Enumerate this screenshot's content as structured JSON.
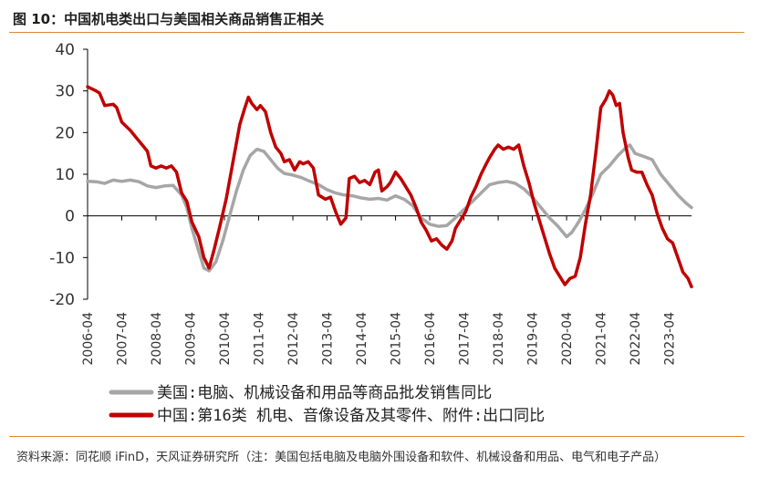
{
  "title": "图 10：中国机电类出口与美国相关商品销售正相关",
  "source": "资料来源：同花顺 iFinD，天风证券研究所（注：美国包括电脑及电脑外围设备和软件、机械设备和用品、电气和电子产品）",
  "colors": {
    "us": "#a6a6a6",
    "china": "#c00000",
    "rule": "#d98b3a"
  },
  "chart_data": {
    "type": "line",
    "x_label_format": "YYYY-04",
    "x_range": [
      2006.25,
      2023.9
    ],
    "ylim": [
      -20,
      40
    ],
    "yticks": [
      -20,
      -10,
      0,
      10,
      20,
      30,
      40
    ],
    "xticks": [
      "2006-04",
      "2007-04",
      "2008-04",
      "2009-04",
      "2010-04",
      "2011-04",
      "2012-04",
      "2013-04",
      "2014-04",
      "2015-04",
      "2016-04",
      "2017-04",
      "2018-04",
      "2019-04",
      "2020-04",
      "2021-04",
      "2022-04",
      "2023-04"
    ],
    "grid": false,
    "legend_position": "bottom",
    "series": [
      {
        "name": "美国:电脑、机械设备和用品等商品批发销售同比",
        "color": "#a6a6a6",
        "points": [
          [
            2006.25,
            8.3
          ],
          [
            2006.5,
            8.2
          ],
          [
            2006.75,
            7.8
          ],
          [
            2007.0,
            8.6
          ],
          [
            2007.25,
            8.3
          ],
          [
            2007.5,
            8.6
          ],
          [
            2007.75,
            8.2
          ],
          [
            2008.0,
            7.2
          ],
          [
            2008.25,
            6.8
          ],
          [
            2008.5,
            7.2
          ],
          [
            2008.75,
            7.3
          ],
          [
            2009.0,
            5.0
          ],
          [
            2009.15,
            2.0
          ],
          [
            2009.3,
            -3.0
          ],
          [
            2009.5,
            -8.5
          ],
          [
            2009.65,
            -12.5
          ],
          [
            2009.8,
            -13.2
          ],
          [
            2010.0,
            -11.0
          ],
          [
            2010.2,
            -6.0
          ],
          [
            2010.4,
            0.0
          ],
          [
            2010.6,
            6.0
          ],
          [
            2010.8,
            11.0
          ],
          [
            2011.0,
            14.5
          ],
          [
            2011.2,
            16.0
          ],
          [
            2011.4,
            15.5
          ],
          [
            2011.6,
            13.5
          ],
          [
            2011.8,
            11.5
          ],
          [
            2012.0,
            10.2
          ],
          [
            2012.25,
            9.8
          ],
          [
            2012.5,
            9.2
          ],
          [
            2012.75,
            8.3
          ],
          [
            2013.0,
            7.5
          ],
          [
            2013.25,
            6.3
          ],
          [
            2013.5,
            5.5
          ],
          [
            2013.75,
            5.0
          ],
          [
            2014.0,
            4.8
          ],
          [
            2014.25,
            4.3
          ],
          [
            2014.5,
            4.0
          ],
          [
            2014.75,
            4.2
          ],
          [
            2015.0,
            3.8
          ],
          [
            2015.25,
            4.8
          ],
          [
            2015.5,
            4.0
          ],
          [
            2015.75,
            2.5
          ],
          [
            2016.0,
            -0.5
          ],
          [
            2016.25,
            -2.0
          ],
          [
            2016.5,
            -2.5
          ],
          [
            2016.75,
            -2.3
          ],
          [
            2017.0,
            -0.5
          ],
          [
            2017.25,
            1.5
          ],
          [
            2017.5,
            3.5
          ],
          [
            2017.75,
            5.5
          ],
          [
            2018.0,
            7.5
          ],
          [
            2018.25,
            8.0
          ],
          [
            2018.5,
            8.3
          ],
          [
            2018.75,
            7.8
          ],
          [
            2019.0,
            6.5
          ],
          [
            2019.25,
            4.5
          ],
          [
            2019.5,
            2.0
          ],
          [
            2019.75,
            -0.5
          ],
          [
            2020.0,
            -2.5
          ],
          [
            2020.25,
            -5.0
          ],
          [
            2020.4,
            -4.0
          ],
          [
            2020.6,
            -1.5
          ],
          [
            2020.8,
            1.5
          ],
          [
            2021.0,
            5.0
          ],
          [
            2021.25,
            10.0
          ],
          [
            2021.5,
            12.0
          ],
          [
            2021.75,
            14.5
          ],
          [
            2022.0,
            16.5
          ],
          [
            2022.1,
            17.0
          ],
          [
            2022.25,
            15.0
          ],
          [
            2022.5,
            14.3
          ],
          [
            2022.75,
            13.5
          ],
          [
            2023.0,
            10.0
          ],
          [
            2023.25,
            7.5
          ],
          [
            2023.5,
            5.0
          ],
          [
            2023.75,
            3.0
          ],
          [
            2023.9,
            2.0
          ]
        ]
      },
      {
        "name": "中国:第16类 机电、音像设备及其零件、附件:出口同比",
        "color": "#c00000",
        "points": [
          [
            2006.25,
            31.0
          ],
          [
            2006.5,
            30.0
          ],
          [
            2006.6,
            29.5
          ],
          [
            2006.75,
            26.5
          ],
          [
            2007.0,
            26.8
          ],
          [
            2007.1,
            26.0
          ],
          [
            2007.25,
            22.5
          ],
          [
            2007.5,
            20.5
          ],
          [
            2007.7,
            18.5
          ],
          [
            2007.9,
            16.5
          ],
          [
            2008.0,
            15.5
          ],
          [
            2008.1,
            12.0
          ],
          [
            2008.25,
            11.5
          ],
          [
            2008.4,
            12.0
          ],
          [
            2008.55,
            11.5
          ],
          [
            2008.7,
            12.0
          ],
          [
            2008.85,
            10.5
          ],
          [
            2009.0,
            5.5
          ],
          [
            2009.15,
            3.5
          ],
          [
            2009.3,
            -1.5
          ],
          [
            2009.5,
            -5.0
          ],
          [
            2009.65,
            -10.0
          ],
          [
            2009.8,
            -12.5
          ],
          [
            2009.95,
            -8.0
          ],
          [
            2010.1,
            -3.0
          ],
          [
            2010.3,
            4.0
          ],
          [
            2010.5,
            13.0
          ],
          [
            2010.7,
            22.0
          ],
          [
            2010.85,
            26.0
          ],
          [
            2010.95,
            28.5
          ],
          [
            2011.05,
            27.0
          ],
          [
            2011.2,
            25.5
          ],
          [
            2011.3,
            26.5
          ],
          [
            2011.45,
            25.0
          ],
          [
            2011.6,
            20.0
          ],
          [
            2011.75,
            16.5
          ],
          [
            2011.9,
            15.0
          ],
          [
            2012.0,
            13.0
          ],
          [
            2012.15,
            13.5
          ],
          [
            2012.3,
            11.0
          ],
          [
            2012.45,
            13.0
          ],
          [
            2012.55,
            12.5
          ],
          [
            2012.7,
            13.0
          ],
          [
            2012.85,
            11.5
          ],
          [
            2013.0,
            5.0
          ],
          [
            2013.2,
            4.0
          ],
          [
            2013.35,
            4.5
          ],
          [
            2013.5,
            1.0
          ],
          [
            2013.65,
            -2.0
          ],
          [
            2013.8,
            -0.5
          ],
          [
            2013.9,
            9.0
          ],
          [
            2014.05,
            9.5
          ],
          [
            2014.2,
            8.0
          ],
          [
            2014.35,
            8.5
          ],
          [
            2014.5,
            7.5
          ],
          [
            2014.65,
            10.5
          ],
          [
            2014.75,
            11.0
          ],
          [
            2014.85,
            6.0
          ],
          [
            2015.0,
            7.0
          ],
          [
            2015.1,
            8.0
          ],
          [
            2015.25,
            10.5
          ],
          [
            2015.4,
            9.0
          ],
          [
            2015.55,
            7.0
          ],
          [
            2015.7,
            5.0
          ],
          [
            2015.85,
            2.0
          ],
          [
            2016.0,
            -1.5
          ],
          [
            2016.15,
            -3.5
          ],
          [
            2016.3,
            -6.0
          ],
          [
            2016.45,
            -5.5
          ],
          [
            2016.6,
            -7.0
          ],
          [
            2016.75,
            -8.0
          ],
          [
            2016.9,
            -6.0
          ],
          [
            2017.0,
            -3.0
          ],
          [
            2017.15,
            -1.0
          ],
          [
            2017.3,
            1.0
          ],
          [
            2017.45,
            4.5
          ],
          [
            2017.6,
            7.0
          ],
          [
            2017.75,
            10.0
          ],
          [
            2017.9,
            12.5
          ],
          [
            2018.0,
            14.0
          ],
          [
            2018.15,
            16.0
          ],
          [
            2018.25,
            17.0
          ],
          [
            2018.4,
            16.0
          ],
          [
            2018.55,
            16.5
          ],
          [
            2018.7,
            16.0
          ],
          [
            2018.85,
            17.0
          ],
          [
            2019.0,
            12.0
          ],
          [
            2019.15,
            8.0
          ],
          [
            2019.3,
            3.0
          ],
          [
            2019.45,
            -1.0
          ],
          [
            2019.6,
            -5.0
          ],
          [
            2019.75,
            -9.0
          ],
          [
            2019.9,
            -12.5
          ],
          [
            2020.05,
            -14.5
          ],
          [
            2020.2,
            -16.5
          ],
          [
            2020.35,
            -15.0
          ],
          [
            2020.5,
            -14.5
          ],
          [
            2020.65,
            -10.0
          ],
          [
            2020.8,
            -2.0
          ],
          [
            2020.95,
            5.0
          ],
          [
            2021.1,
            15.0
          ],
          [
            2021.25,
            26.0
          ],
          [
            2021.4,
            28.0
          ],
          [
            2021.5,
            30.0
          ],
          [
            2021.6,
            29.0
          ],
          [
            2021.7,
            26.5
          ],
          [
            2021.8,
            27.0
          ],
          [
            2021.9,
            20.0
          ],
          [
            2022.05,
            14.0
          ],
          [
            2022.15,
            11.0
          ],
          [
            2022.3,
            10.5
          ],
          [
            2022.45,
            10.5
          ],
          [
            2022.6,
            7.5
          ],
          [
            2022.75,
            5.0
          ],
          [
            2022.9,
            0.5
          ],
          [
            2023.05,
            -3.0
          ],
          [
            2023.2,
            -5.5
          ],
          [
            2023.35,
            -6.5
          ],
          [
            2023.5,
            -10.0
          ],
          [
            2023.65,
            -13.5
          ],
          [
            2023.8,
            -15.0
          ],
          [
            2023.9,
            -17.0
          ]
        ]
      }
    ]
  }
}
